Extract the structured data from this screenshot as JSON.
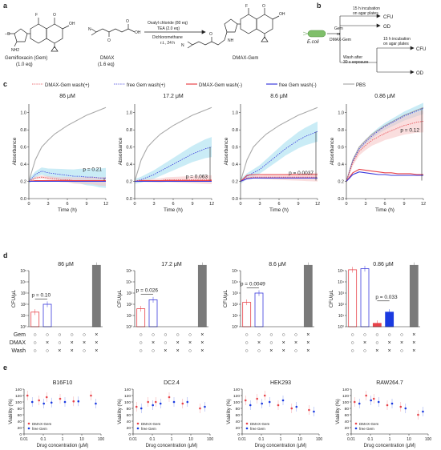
{
  "panel_letters": {
    "a": "a",
    "b": "b",
    "c": "c",
    "d": "d",
    "e": "e"
  },
  "panel_a": {
    "reactant1_name": "Gemifloxacin (Gem)",
    "reactant1_eq": "(1.0 eq)",
    "reactant2_name": "DMAX",
    "reactant2_eq": "(1.6 eq)",
    "reagent_line1": "Oxalyl chloride (80 eq)",
    "reagent_line2": "TEA (2.0 eq)",
    "solvent": "Dichloromethane",
    "conditions": "r.t., 24 h",
    "product_name": "DMAX-Gem",
    "atoms": {
      "F": "F",
      "O": "O",
      "OH": "OH",
      "N": "N",
      "NH2": "NH2",
      "NH": "NH",
      "MeO": "–O"
    }
  },
  "panel_b": {
    "organism": "E.coli",
    "treatment_top": "Gem",
    "treatment_or": "or",
    "treatment_bottom": "DMAX-Gem",
    "incubation_top": "15 h incubation",
    "incubation_top2": "on agar plates",
    "incubation_bottom": "15 h incubation",
    "incubation_bottom2": "on agar plates",
    "wash_line1": "Wash after",
    "wash_line2": "30 s exposure",
    "readouts": [
      "CFU",
      "OD",
      "CFU",
      "OD"
    ]
  },
  "panel_c": {
    "legend": [
      "DMAX-Gem wash(+)",
      "free Gem wash(+)",
      "DMAX-Gem wash(-)",
      "free Gem wash(-)",
      "PBS"
    ],
    "colors": {
      "dmax": "#e8434a",
      "gem": "#3a3adc",
      "pbs": "#a9a9a9",
      "cyan": "#9fdcef",
      "pink": "#f6c3c3"
    },
    "xlabel": "Time (h)",
    "ylabel": "Absorbance",
    "xticks": [
      "0",
      "3",
      "6",
      "9",
      "12"
    ],
    "yticks": [
      "0.0",
      "0.2",
      "0.4",
      "0.6",
      "0.8",
      "1.0"
    ],
    "ylim": [
      0,
      1.1
    ],
    "subplots": [
      {
        "title": "86 μM",
        "pval": "p = 0.21"
      },
      {
        "title": "17.2 μM",
        "pval": "p = 0.063"
      },
      {
        "title": "8.6 μM",
        "pval": "p = 0.0037"
      },
      {
        "title": "0.86 μM",
        "pval": "p = 0.12"
      }
    ]
  },
  "panel_d": {
    "ylabel": "CFU/μL",
    "yticks": [
      "10⁰",
      "10¹",
      "10²",
      "10³",
      "10⁴",
      "10⁵"
    ],
    "row_labels": [
      "Gem",
      "DMAX",
      "Wash"
    ],
    "rows": [
      [
        "○",
        "○",
        "○",
        "○",
        "○",
        "×"
      ],
      [
        "○",
        "×",
        "○",
        "×",
        "×",
        "×"
      ],
      [
        "○",
        "○",
        "×",
        "×",
        "○",
        "×"
      ]
    ],
    "subplots": [
      {
        "title": "86 μM",
        "pval": "p = 0.10"
      },
      {
        "title": "17.2 μM",
        "pval": "p = 0.026"
      },
      {
        "title": "8.6 μM",
        "pval": "p = 0.0049"
      },
      {
        "title": "0.86 μM",
        "pval": "p = 0.033"
      }
    ]
  },
  "panel_e": {
    "ylabel": "Viability (%)",
    "xlabel": "Drug concentration (μM)",
    "xticks": [
      "0.01",
      "0.1",
      "1",
      "10",
      "100"
    ],
    "yticks": [
      "0",
      "20",
      "40",
      "60",
      "80",
      "100",
      "120",
      "140"
    ],
    "legend": [
      "DMAX-Gem",
      "free Gem"
    ],
    "subplots": [
      {
        "title": "B16F10"
      },
      {
        "title": "DC2.4"
      },
      {
        "title": "HEK293"
      },
      {
        "title": "RAW264.7"
      }
    ]
  },
  "chart_data": [
    {
      "type": "line",
      "title": "86 μM",
      "xlabel": "Time (h)",
      "ylabel": "Absorbance",
      "ylim": [
        0,
        1.1
      ],
      "x": [
        0,
        1,
        2,
        3,
        4,
        5,
        6,
        7,
        8,
        9,
        10,
        11,
        12
      ],
      "series": [
        {
          "name": "PBS",
          "values": [
            0.2,
            0.45,
            0.6,
            0.68,
            0.75,
            0.8,
            0.85,
            0.89,
            0.93,
            0.97,
            1.0,
            1.03,
            1.06
          ]
        },
        {
          "name": "free Gem wash(+)",
          "values": [
            0.2,
            0.28,
            0.32,
            0.3,
            0.29,
            0.28,
            0.27,
            0.26,
            0.26,
            0.25,
            0.25,
            0.24,
            0.24
          ]
        },
        {
          "name": "DMAX-Gem wash(+)",
          "values": [
            0.2,
            0.24,
            0.25,
            0.24,
            0.23,
            0.22,
            0.22,
            0.21,
            0.21,
            0.21,
            0.21,
            0.2,
            0.2
          ]
        },
        {
          "name": "DMAX-Gem wash(-)",
          "values": [
            0.2,
            0.21,
            0.21,
            0.21,
            0.21,
            0.21,
            0.21,
            0.21,
            0.21,
            0.21,
            0.21,
            0.21,
            0.21
          ]
        },
        {
          "name": "free Gem wash(-)",
          "values": [
            0.2,
            0.2,
            0.2,
            0.2,
            0.2,
            0.2,
            0.2,
            0.2,
            0.2,
            0.2,
            0.2,
            0.2,
            0.2
          ]
        }
      ]
    },
    {
      "type": "line",
      "title": "17.2 μM",
      "xlabel": "Time (h)",
      "ylabel": "Absorbance",
      "ylim": [
        0,
        1.1
      ],
      "x": [
        0,
        1,
        2,
        3,
        4,
        5,
        6,
        7,
        8,
        9,
        10,
        11,
        12
      ],
      "series": [
        {
          "name": "PBS",
          "values": [
            0.2,
            0.45,
            0.6,
            0.68,
            0.75,
            0.8,
            0.85,
            0.89,
            0.93,
            0.97,
            1.0,
            1.03,
            1.06
          ]
        },
        {
          "name": "free Gem wash(+)",
          "values": [
            0.2,
            0.22,
            0.25,
            0.28,
            0.32,
            0.36,
            0.4,
            0.44,
            0.48,
            0.52,
            0.55,
            0.58,
            0.6
          ]
        },
        {
          "name": "DMAX-Gem wash(+)",
          "values": [
            0.2,
            0.21,
            0.21,
            0.21,
            0.21,
            0.22,
            0.22,
            0.22,
            0.22,
            0.22,
            0.22,
            0.22,
            0.22
          ]
        },
        {
          "name": "DMAX-Gem wash(-)",
          "values": [
            0.2,
            0.21,
            0.21,
            0.21,
            0.21,
            0.21,
            0.21,
            0.21,
            0.21,
            0.21,
            0.21,
            0.21,
            0.21
          ]
        },
        {
          "name": "free Gem wash(-)",
          "values": [
            0.2,
            0.2,
            0.2,
            0.2,
            0.2,
            0.2,
            0.2,
            0.2,
            0.2,
            0.2,
            0.2,
            0.2,
            0.2
          ]
        }
      ]
    },
    {
      "type": "line",
      "title": "8.6 μM",
      "xlabel": "Time (h)",
      "ylabel": "Absorbance",
      "ylim": [
        0,
        1.1
      ],
      "x": [
        0,
        1,
        2,
        3,
        4,
        5,
        6,
        7,
        8,
        9,
        10,
        11,
        12
      ],
      "series": [
        {
          "name": "PBS",
          "values": [
            0.2,
            0.45,
            0.6,
            0.68,
            0.75,
            0.8,
            0.85,
            0.89,
            0.93,
            0.97,
            1.0,
            1.03,
            1.06
          ]
        },
        {
          "name": "free Gem wash(+)",
          "values": [
            0.2,
            0.26,
            0.3,
            0.34,
            0.4,
            0.46,
            0.52,
            0.58,
            0.63,
            0.68,
            0.72,
            0.75,
            0.78
          ]
        },
        {
          "name": "DMAX-Gem wash(+)",
          "values": [
            0.2,
            0.24,
            0.25,
            0.25,
            0.25,
            0.25,
            0.25,
            0.25,
            0.25,
            0.25,
            0.25,
            0.25,
            0.25
          ]
        },
        {
          "name": "DMAX-Gem wash(-)",
          "values": [
            0.2,
            0.27,
            0.28,
            0.28,
            0.28,
            0.28,
            0.28,
            0.28,
            0.28,
            0.28,
            0.28,
            0.28,
            0.28
          ]
        },
        {
          "name": "free Gem wash(-)",
          "values": [
            0.2,
            0.23,
            0.24,
            0.24,
            0.24,
            0.24,
            0.24,
            0.24,
            0.24,
            0.24,
            0.24,
            0.24,
            0.24
          ]
        }
      ]
    },
    {
      "type": "line",
      "title": "0.86 μM",
      "xlabel": "Time (h)",
      "ylabel": "Absorbance",
      "ylim": [
        0,
        1.1
      ],
      "x": [
        0,
        1,
        2,
        3,
        4,
        5,
        6,
        7,
        8,
        9,
        10,
        11,
        12
      ],
      "series": [
        {
          "name": "PBS",
          "values": [
            0.2,
            0.45,
            0.6,
            0.68,
            0.75,
            0.8,
            0.85,
            0.89,
            0.93,
            0.97,
            1.0,
            1.03,
            1.06
          ]
        },
        {
          "name": "free Gem wash(+)",
          "values": [
            0.2,
            0.44,
            0.58,
            0.66,
            0.73,
            0.79,
            0.84,
            0.88,
            0.92,
            0.96,
            0.99,
            1.02,
            1.05
          ]
        },
        {
          "name": "DMAX-Gem wash(+)",
          "values": [
            0.2,
            0.42,
            0.55,
            0.62,
            0.68,
            0.72,
            0.76,
            0.79,
            0.82,
            0.85,
            0.87,
            0.89,
            0.9
          ]
        },
        {
          "name": "DMAX-Gem wash(-)",
          "values": [
            0.2,
            0.3,
            0.34,
            0.33,
            0.32,
            0.31,
            0.3,
            0.3,
            0.29,
            0.29,
            0.29,
            0.28,
            0.28
          ]
        },
        {
          "name": "free Gem wash(-)",
          "values": [
            0.2,
            0.28,
            0.31,
            0.3,
            0.29,
            0.28,
            0.28,
            0.27,
            0.27,
            0.27,
            0.27,
            0.27,
            0.27
          ]
        }
      ]
    },
    {
      "type": "bar",
      "title": "86 μM",
      "ylabel": "CFU/μL",
      "categories": [
        "1",
        "2",
        "3",
        "4",
        "5",
        "6"
      ],
      "series": [
        {
          "values": [
            20,
            100,
            0,
            0,
            0,
            300000
          ]
        }
      ]
    },
    {
      "type": "bar",
      "title": "17.2 μM",
      "ylabel": "CFU/μL",
      "categories": [
        "1",
        "2",
        "3",
        "4",
        "5",
        "6"
      ],
      "series": [
        {
          "values": [
            40,
            250,
            0,
            0,
            0,
            300000
          ]
        }
      ]
    },
    {
      "type": "bar",
      "title": "8.6 μM",
      "ylabel": "CFU/μL",
      "categories": [
        "1",
        "2",
        "3",
        "4",
        "5",
        "6"
      ],
      "series": [
        {
          "values": [
            150,
            1000,
            0,
            0,
            0,
            300000
          ]
        }
      ]
    },
    {
      "type": "bar",
      "title": "0.86 μM",
      "ylabel": "CFU/μL",
      "categories": [
        "1",
        "2",
        "3",
        "4",
        "5",
        "6"
      ],
      "series": [
        {
          "values": [
            120000,
            150000,
            2,
            20,
            0,
            300000
          ]
        }
      ]
    },
    {
      "type": "scatter",
      "title": "B16F10",
      "xlabel": "Drug concentration (μM)",
      "ylabel": "Viability (%)",
      "series": [
        {
          "name": "DMAX-Gem",
          "x": [
            0.02,
            0.08,
            0.2,
            1,
            5,
            40
          ],
          "y": [
            120,
            105,
            115,
            110,
            102,
            120
          ]
        },
        {
          "name": "free Gem",
          "x": [
            0.02,
            0.08,
            0.2,
            1,
            5,
            40
          ],
          "y": [
            100,
            95,
            98,
            100,
            102,
            95
          ]
        }
      ]
    },
    {
      "type": "scatter",
      "title": "DC2.4",
      "xlabel": "Drug concentration (μM)",
      "ylabel": "Viability (%)",
      "series": [
        {
          "name": "DMAX-Gem",
          "x": [
            0.02,
            0.08,
            0.2,
            1,
            5,
            40
          ],
          "y": [
            85,
            100,
            100,
            115,
            95,
            80
          ]
        },
        {
          "name": "free Gem",
          "x": [
            0.02,
            0.08,
            0.2,
            1,
            5,
            40
          ],
          "y": [
            80,
            90,
            95,
            100,
            100,
            85
          ]
        }
      ]
    },
    {
      "type": "scatter",
      "title": "HEK293",
      "xlabel": "Drug concentration (μM)",
      "ylabel": "Viability (%)",
      "series": [
        {
          "name": "DMAX-Gem",
          "x": [
            0.02,
            0.08,
            0.2,
            1,
            5,
            40
          ],
          "y": [
            105,
            110,
            120,
            90,
            80,
            75
          ]
        },
        {
          "name": "free Gem",
          "x": [
            0.02,
            0.08,
            0.2,
            1,
            5,
            40
          ],
          "y": [
            90,
            95,
            100,
            105,
            85,
            70
          ]
        }
      ]
    },
    {
      "type": "scatter",
      "title": "RAW264.7",
      "xlabel": "Drug concentration (μM)",
      "ylabel": "Viability (%)",
      "series": [
        {
          "name": "DMAX-Gem",
          "x": [
            0.02,
            0.08,
            0.2,
            1,
            5,
            40
          ],
          "y": [
            100,
            120,
            110,
            90,
            85,
            60
          ]
        },
        {
          "name": "free Gem",
          "x": [
            0.02,
            0.08,
            0.2,
            1,
            5,
            40
          ],
          "y": [
            95,
            105,
            100,
            95,
            80,
            70
          ]
        }
      ]
    }
  ]
}
